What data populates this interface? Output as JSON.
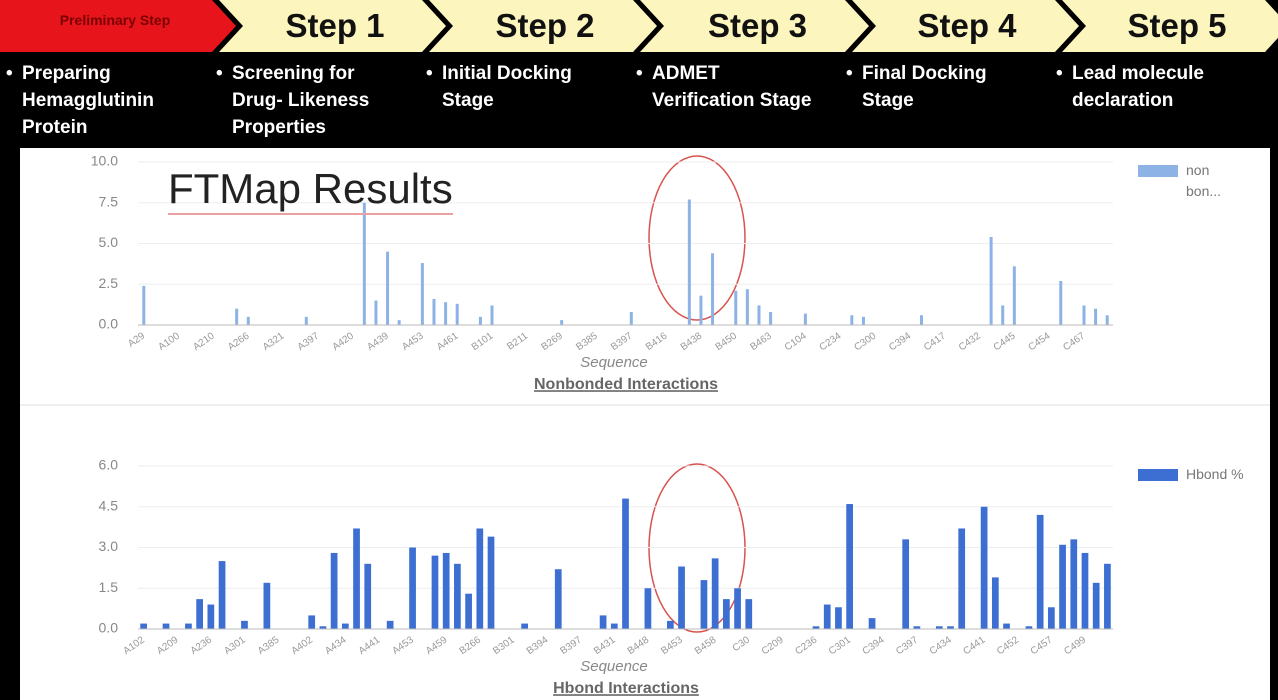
{
  "steps": [
    {
      "label": "Preliminary Step",
      "description": "Preparing Hemagglutinin Protein"
    },
    {
      "label": "Step 1",
      "description": "Screening for Drug- Likeness Properties"
    },
    {
      "label": "Step 2",
      "description": "Initial Docking Stage"
    },
    {
      "label": "Step 3",
      "description": "ADMET Verification Stage"
    },
    {
      "label": "Step 4",
      "description": "Final Docking Stage"
    },
    {
      "label": "Step 5",
      "description": "Lead molecule declaration"
    }
  ],
  "chart_data": [
    {
      "type": "bar",
      "title": "Nonbonded Interactions",
      "annotation": "FTMap Results",
      "x_label": "Sequence",
      "categories": [
        "A29",
        null,
        null,
        "A100",
        null,
        null,
        "A210",
        null,
        null,
        "A266",
        null,
        null,
        "A321",
        null,
        null,
        "A397",
        null,
        null,
        "A420",
        null,
        null,
        "A439",
        null,
        null,
        "A453",
        null,
        null,
        "A461",
        null,
        null,
        "B101",
        null,
        null,
        "B211",
        null,
        null,
        "B269",
        null,
        null,
        "B385",
        null,
        null,
        "B397",
        null,
        null,
        "B416",
        null,
        null,
        "B438",
        null,
        null,
        "B450",
        null,
        null,
        "B463",
        null,
        null,
        "C104",
        null,
        null,
        "C234",
        null,
        null,
        "C300",
        null,
        null,
        "C394",
        null,
        null,
        "C417",
        null,
        null,
        "C432",
        null,
        null,
        "C445",
        null,
        null,
        "C454",
        null,
        null,
        "C467",
        null,
        null
      ],
      "series": [
        {
          "name": "non bon...",
          "color": "#8db3e6",
          "values": [
            2.4,
            0,
            0,
            0,
            0,
            0,
            0,
            0,
            1.0,
            0.5,
            0,
            0,
            0,
            0,
            0.5,
            0,
            0,
            0,
            0,
            7.5,
            1.5,
            4.5,
            0.3,
            0,
            3.8,
            1.6,
            1.4,
            1.3,
            0,
            0.5,
            1.2,
            0,
            0,
            0,
            0,
            0,
            0.3,
            0,
            0,
            0,
            0,
            0,
            0.8,
            0,
            0,
            0,
            0,
            7.7,
            1.8,
            4.4,
            0,
            2.1,
            2.2,
            1.2,
            0.8,
            0,
            0,
            0.7,
            0,
            0,
            0,
            0.6,
            0.5,
            0,
            0,
            0,
            0,
            0.6,
            0,
            0,
            0,
            0,
            0,
            5.4,
            1.2,
            3.6,
            0,
            0,
            0,
            2.7,
            0,
            1.2,
            1.0,
            0.6
          ]
        }
      ],
      "ylim": [
        0,
        10
      ],
      "yticks": [
        {
          "value": 0,
          "label": "0.0"
        },
        {
          "value": 2.5,
          "label": "2.5"
        },
        {
          "value": 5,
          "label": "5.0"
        },
        {
          "value": 7.5,
          "label": "7.5"
        },
        {
          "value": 10,
          "label": "10.0"
        }
      ],
      "grid": true
    },
    {
      "type": "bar",
      "title": "Hbond Interactions",
      "x_label": "Sequence",
      "categories": [
        "A102",
        null,
        null,
        "A209",
        null,
        null,
        "A236",
        null,
        null,
        "A301",
        null,
        null,
        "A385",
        null,
        null,
        "A402",
        null,
        null,
        "A434",
        null,
        null,
        "A441",
        null,
        null,
        "A453",
        null,
        null,
        "A459",
        null,
        null,
        "B266",
        null,
        null,
        "B301",
        null,
        null,
        "B394",
        null,
        null,
        "B397",
        null,
        null,
        "B431",
        null,
        null,
        "B448",
        null,
        null,
        "B453",
        null,
        null,
        "B458",
        null,
        null,
        "C30",
        null,
        null,
        "C209",
        null,
        null,
        "C236",
        null,
        null,
        "C301",
        null,
        null,
        "C394",
        null,
        null,
        "C397",
        null,
        null,
        "C434",
        null,
        null,
        "C441",
        null,
        null,
        "C452",
        null,
        null,
        "C457",
        null,
        null,
        "C499",
        null,
        null
      ],
      "series": [
        {
          "name": "Hbond %",
          "color": "#3d6fd2",
          "values": [
            0.2,
            0,
            0.2,
            0,
            0.2,
            1.1,
            0.9,
            2.5,
            0,
            0.3,
            0,
            1.7,
            0,
            0,
            0,
            0.5,
            0.1,
            2.8,
            0.2,
            3.7,
            2.4,
            0,
            0.3,
            0,
            3.0,
            0,
            2.7,
            2.8,
            2.4,
            1.3,
            3.7,
            3.4,
            0,
            0,
            0.2,
            0,
            0,
            2.2,
            0,
            0,
            0,
            0.5,
            0.2,
            4.8,
            0,
            1.5,
            0,
            0.3,
            2.3,
            0,
            1.8,
            2.6,
            1.1,
            1.5,
            1.1,
            0,
            0,
            0,
            0,
            0,
            0.1,
            0.9,
            0.8,
            4.6,
            0,
            0.4,
            0,
            0,
            3.3,
            0.1,
            0,
            0.1,
            0.1,
            3.7,
            0,
            4.5,
            1.9,
            0.2,
            0,
            0.1,
            4.2,
            0.8,
            3.1,
            3.3,
            2.8,
            1.7,
            2.4
          ]
        }
      ],
      "ylim": [
        0,
        6
      ],
      "yticks": [
        {
          "value": 0,
          "label": "0.0"
        },
        {
          "value": 1.5,
          "label": "1.5"
        },
        {
          "value": 3,
          "label": "3.0"
        },
        {
          "value": 4.5,
          "label": "4.5"
        },
        {
          "value": 6,
          "label": "6.0"
        }
      ],
      "grid": true
    }
  ]
}
